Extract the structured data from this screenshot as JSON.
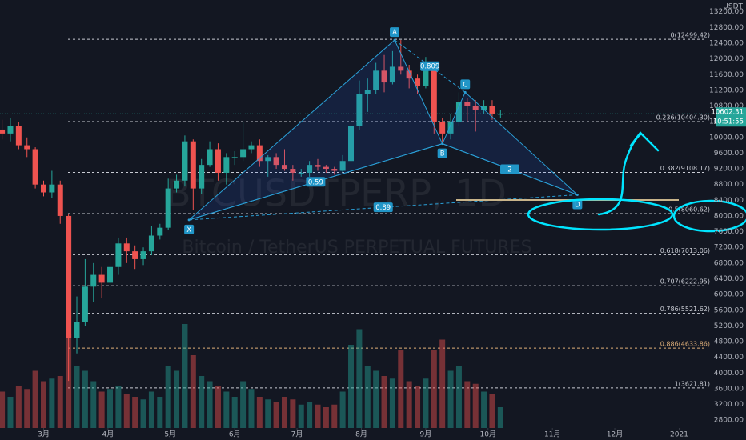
{
  "chart_data": {
    "type": "candlestick",
    "title": "BTCUSDTPERP, 1D",
    "subtitle": "Bitcoin / TetherUS PERPETUAL FUTURES",
    "y_axis_label": "USDT",
    "up_color": "#26a69a",
    "down_color": "#ef5350",
    "x": [
      40,
      44,
      48,
      52,
      56,
      60,
      64,
      68,
      72,
      76,
      80,
      84,
      88,
      92,
      96,
      100,
      104,
      108,
      112,
      116,
      120,
      124,
      128,
      132,
      136,
      140,
      144,
      148,
      152,
      156,
      160,
      164,
      168,
      172,
      176,
      180,
      184,
      188,
      192,
      196,
      200,
      204,
      208,
      212,
      216,
      220,
      224,
      228,
      232,
      236,
      240,
      244,
      248,
      252,
      256,
      260,
      264,
      268,
      272,
      276,
      280
    ],
    "open": [
      10200,
      10100,
      10300,
      9800,
      9700,
      8800,
      8600,
      8800,
      8000,
      4900,
      5300,
      6200,
      6500,
      6300,
      6700,
      7300,
      7100,
      6900,
      7100,
      7500,
      7700,
      8700,
      8900,
      9900,
      8700,
      9300,
      9700,
      9100,
      9500,
      9500,
      9700,
      9800,
      9400,
      9500,
      9300,
      9200,
      9100,
      9100,
      9300,
      9250,
      9200,
      9150,
      9400,
      10300,
      11100,
      11200,
      11700,
      11400,
      11800,
      11700,
      11500,
      11300,
      11700,
      10400,
      10100,
      10400,
      10900,
      10800,
      10700,
      10800,
      10600
    ],
    "high": [
      10450,
      10500,
      10400,
      10000,
      9750,
      8900,
      9150,
      8900,
      8050,
      5950,
      6900,
      6800,
      6700,
      6950,
      7450,
      7450,
      7250,
      7200,
      7750,
      7800,
      8950,
      9050,
      10050,
      9950,
      9450,
      9900,
      9850,
      9600,
      9650,
      10400,
      9900,
      9950,
      9550,
      9600,
      9700,
      9300,
      9200,
      9400,
      9450,
      9300,
      9250,
      9550,
      10400,
      11450,
      11500,
      11900,
      12100,
      12200,
      12480,
      11850,
      11600,
      12050,
      11800,
      10500,
      10600,
      11150,
      11000,
      10950,
      10950,
      10950,
      10700
    ],
    "low": [
      9950,
      9900,
      9700,
      9500,
      8700,
      8500,
      8450,
      7800,
      3800,
      4500,
      5200,
      5800,
      5900,
      6150,
      6500,
      6800,
      6650,
      6750,
      7000,
      7400,
      7650,
      8600,
      8750,
      8150,
      8550,
      9250,
      8900,
      8800,
      9300,
      9400,
      9600,
      9250,
      9000,
      9200,
      9150,
      8900,
      9000,
      9000,
      9150,
      9100,
      9050,
      9100,
      9350,
      10200,
      10650,
      11100,
      11150,
      11350,
      11600,
      11250,
      11100,
      11250,
      10100,
      9850,
      9950,
      10300,
      10400,
      10150,
      10600,
      10450,
      10500
    ],
    "close": [
      10100,
      10300,
      9800,
      9700,
      8800,
      8600,
      8800,
      8000,
      4900,
      5300,
      6200,
      6500,
      6300,
      6700,
      7300,
      7100,
      6900,
      7100,
      7500,
      7700,
      8700,
      8900,
      9900,
      8700,
      9300,
      9700,
      9100,
      9500,
      9500,
      9700,
      9800,
      9400,
      9500,
      9300,
      9200,
      9100,
      9100,
      9300,
      9250,
      9200,
      9150,
      9400,
      10300,
      11100,
      11200,
      11700,
      11400,
      11800,
      11700,
      11500,
      11300,
      11700,
      10400,
      10100,
      10400,
      10900,
      10800,
      10700,
      10800,
      10600,
      10600
    ],
    "volume": [
      70,
      60,
      80,
      75,
      110,
      90,
      95,
      100,
      180,
      120,
      110,
      90,
      70,
      75,
      80,
      65,
      60,
      55,
      70,
      60,
      120,
      110,
      200,
      140,
      100,
      90,
      80,
      70,
      60,
      90,
      75,
      60,
      55,
      50,
      60,
      55,
      45,
      50,
      45,
      40,
      45,
      70,
      160,
      190,
      120,
      110,
      100,
      95,
      150,
      90,
      80,
      95,
      150,
      170,
      110,
      120,
      90,
      85,
      70,
      65,
      40
    ],
    "xlim": [
      39,
      382
    ],
    "ylim": [
      2600,
      13500
    ],
    "xticks": [
      {
        "value": 60,
        "label": "3月"
      },
      {
        "value": 91,
        "label": "4月"
      },
      {
        "value": 121,
        "label": "5月"
      },
      {
        "value": 152,
        "label": "6月"
      },
      {
        "value": 182,
        "label": "7月"
      },
      {
        "value": 213,
        "label": "8月"
      },
      {
        "value": 244,
        "label": "9月"
      },
      {
        "value": 274,
        "label": "10月"
      },
      {
        "value": 305,
        "label": "11月"
      },
      {
        "value": 335,
        "label": "12月"
      },
      {
        "value": 366,
        "label": "2021"
      }
    ],
    "yticks": [
      {
        "value": 2800,
        "label": "2800.00"
      },
      {
        "value": 3200,
        "label": "3200.00"
      },
      {
        "value": 3600,
        "label": "3600.00"
      },
      {
        "value": 4000,
        "label": "4000.00"
      },
      {
        "value": 4400,
        "label": "4400.00"
      },
      {
        "value": 4800,
        "label": "4800.00"
      },
      {
        "value": 5200,
        "label": "5200.00"
      },
      {
        "value": 5600,
        "label": "5600.00"
      },
      {
        "value": 6000,
        "label": "6000.00"
      },
      {
        "value": 6400,
        "label": "6400.00"
      },
      {
        "value": 6800,
        "label": "6800.00"
      },
      {
        "value": 7200,
        "label": "7200.00"
      },
      {
        "value": 7600,
        "label": "7600.00"
      },
      {
        "value": 8000,
        "label": "8000.00"
      },
      {
        "value": 8400,
        "label": "8400.00"
      },
      {
        "value": 8800,
        "label": "8800.00"
      },
      {
        "value": 9200,
        "label": "9200.00"
      },
      {
        "value": 9600,
        "label": "9600.00"
      },
      {
        "value": 10000,
        "label": "10000.00"
      },
      {
        "value": 10400,
        "label": "10400.00"
      },
      {
        "value": 10800,
        "label": "10800.00"
      },
      {
        "value": 11200,
        "label": "11200.00"
      },
      {
        "value": 11600,
        "label": "11600.00"
      },
      {
        "value": 12000,
        "label": "12000.00"
      },
      {
        "value": 12400,
        "label": "12400.00"
      },
      {
        "value": 12800,
        "label": "12800.00"
      },
      {
        "value": 13200,
        "label": "13200.00"
      }
    ],
    "fib_levels": [
      {
        "value": 12499.42,
        "label": "0(12499.42)"
      },
      {
        "value": 10404.3,
        "label": "0.236(10404.30)"
      },
      {
        "value": 9108.17,
        "label": "0.382(9108.17)"
      },
      {
        "value": 8060.62,
        "label": "0.5(8060.62)"
      },
      {
        "value": 7013.06,
        "label": "0.618(7013.06)"
      },
      {
        "value": 6222.95,
        "label": "0.707(6222.95)"
      },
      {
        "value": 5521.62,
        "label": "0.786(5521.62)"
      },
      {
        "value": 4633.86,
        "label": "0.886(4633.86)"
      },
      {
        "value": 3621.81,
        "label": "1(3621.81)"
      }
    ],
    "pattern_points": [
      {
        "label": "X",
        "x": 130,
        "price": 7900
      },
      {
        "label": "A",
        "x": 229,
        "price": 12480
      },
      {
        "label": "B",
        "x": 252,
        "price": 9840
      },
      {
        "label": "C",
        "x": 263,
        "price": 11150
      },
      {
        "label": "D",
        "x": 317,
        "price": 8540
      }
    ],
    "pattern_ratios": [
      0.59,
      0.809,
      0.89,
      2
    ],
    "last_price": 10602.31,
    "countdown": "10:51:55"
  }
}
